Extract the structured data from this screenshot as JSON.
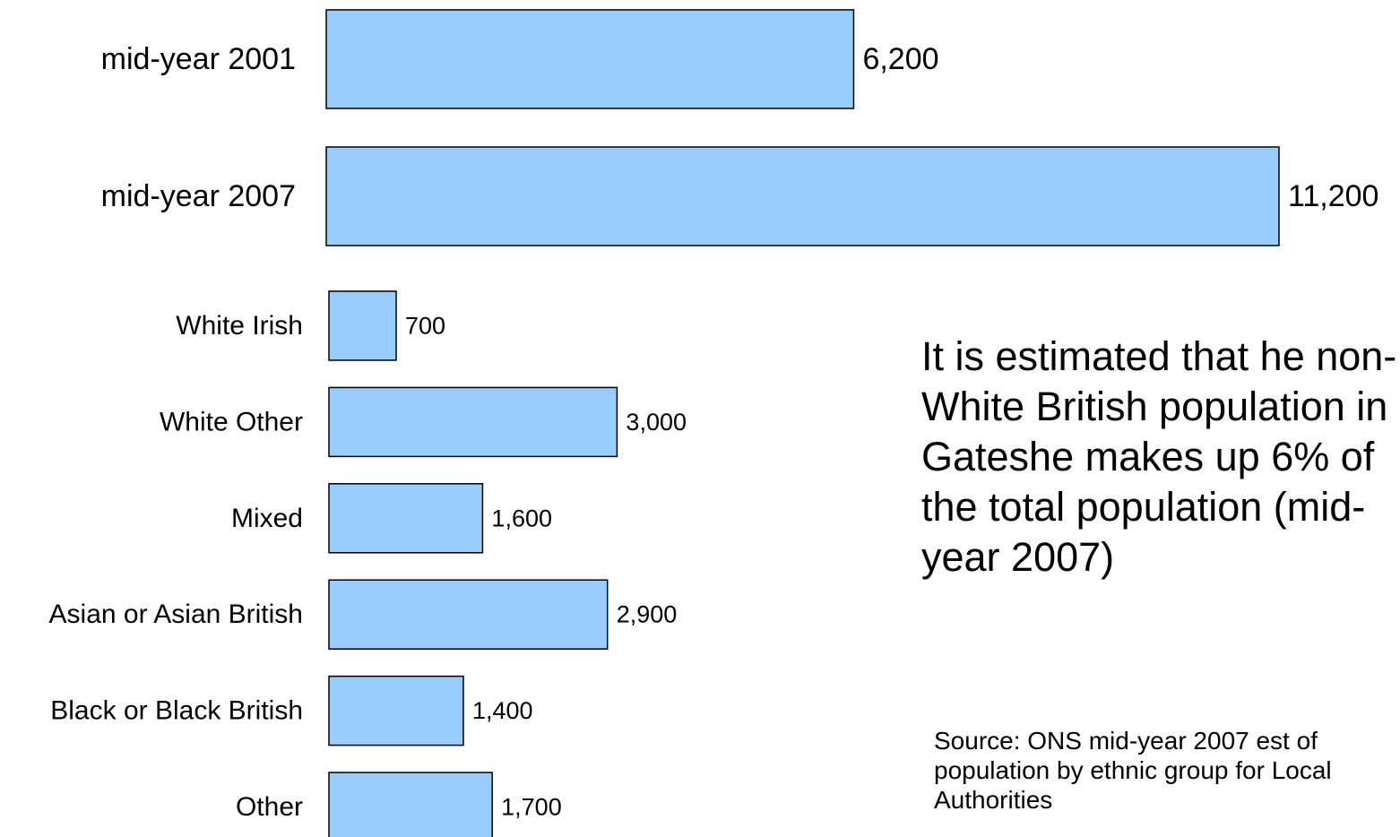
{
  "chart_data": [
    {
      "type": "bar",
      "orientation": "horizontal",
      "categories": [
        "mid-year 2001",
        "mid-year 2007"
      ],
      "values": [
        6200,
        11200
      ],
      "value_labels": [
        "6,200",
        "11,200"
      ],
      "bar_color": "#99CCFF",
      "title": "",
      "xlabel": "",
      "ylabel": "",
      "grid": false
    },
    {
      "type": "bar",
      "orientation": "horizontal",
      "categories": [
        "White Irish",
        "White Other",
        "Mixed",
        "Asian or Asian British",
        "Black or Black British",
        "Other"
      ],
      "values": [
        700,
        3000,
        1600,
        2900,
        1400,
        1700
      ],
      "value_labels": [
        "700",
        "3,000",
        "1,600",
        "2,900",
        "1,400",
        "1,700"
      ],
      "bar_color": "#99CCFF",
      "title": "",
      "xlabel": "",
      "ylabel": "",
      "grid": false
    }
  ],
  "annotation": "It is estimated that he non-White British population in Gateshe makes up 6% of the total population (mid-year 2007)",
  "source": "Source: ONS mid-year 2007 est of population by ethnic group for Local Authorities"
}
